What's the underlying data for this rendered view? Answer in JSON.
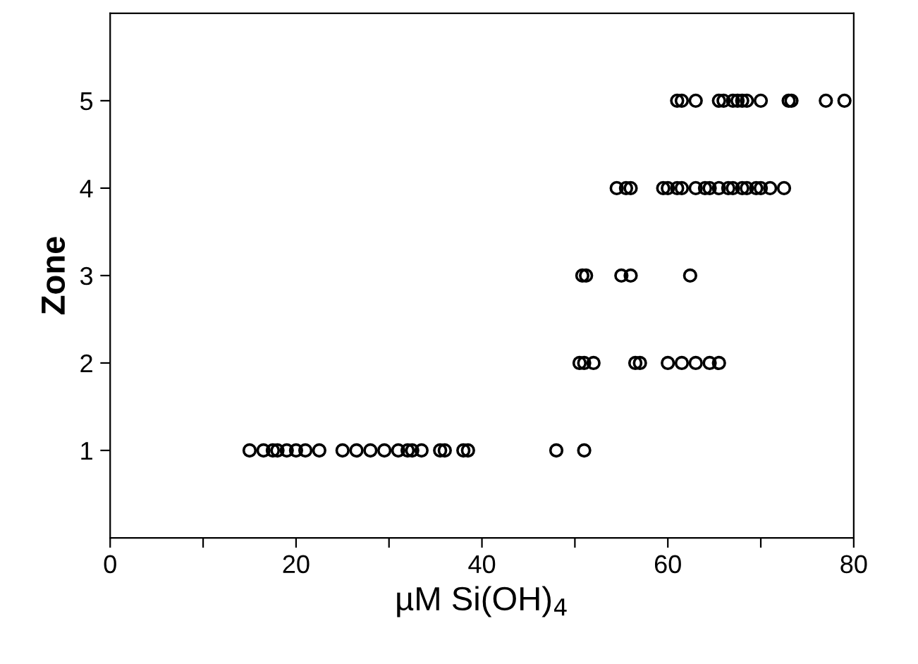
{
  "chart_data": {
    "type": "scatter",
    "xlabel": "µM Si(OH)$_{4}$",
    "ylabel": "Zone",
    "marker": "circle",
    "grid": false,
    "legend": false,
    "xlim": [
      0,
      80
    ],
    "ylim": [
      0,
      6
    ],
    "xticks": [
      0,
      {
        "value": 10,
        "label": null
      },
      20,
      {
        "value": 30,
        "label": null
      },
      40,
      {
        "value": 50,
        "label": null
      },
      60,
      {
        "value": 70,
        "label": null
      },
      80
    ],
    "yticks": [
      1,
      2,
      3,
      4,
      5
    ],
    "series": [
      {
        "color": "#000000",
        "x": [
          15,
          16.5,
          17.5,
          18,
          19,
          20,
          21,
          22.5,
          25,
          26.5,
          28,
          29.5,
          31,
          32,
          32.5,
          33.5,
          35.5,
          36,
          38,
          38.5,
          48,
          51
        ],
        "values": [
          1,
          1,
          1,
          1,
          1,
          1,
          1,
          1,
          1,
          1,
          1,
          1,
          1,
          1,
          1,
          1,
          1,
          1,
          1,
          1,
          1,
          1
        ]
      },
      {
        "color": "#000000",
        "x": [
          50.5,
          51,
          52,
          56.5,
          57,
          60,
          61.5,
          63,
          64.5,
          65.5
        ],
        "values": [
          2,
          2,
          2,
          2,
          2,
          2,
          2,
          2,
          2,
          2
        ]
      },
      {
        "color": "#000000",
        "x": [
          50.8,
          51.2,
          55,
          56,
          62.4
        ],
        "values": [
          3,
          3,
          3,
          3,
          3
        ]
      },
      {
        "color": "#000000",
        "x": [
          54.5,
          55.5,
          56,
          59.5,
          60,
          61,
          61.5,
          63,
          64,
          64.5,
          65.5,
          66.5,
          67,
          68,
          68.5,
          69.5,
          70,
          71,
          72.5
        ],
        "values": [
          4,
          4,
          4,
          4,
          4,
          4,
          4,
          4,
          4,
          4,
          4,
          4,
          4,
          4,
          4,
          4,
          4,
          4,
          4
        ]
      },
      {
        "color": "#000000",
        "x": [
          61,
          61.5,
          63,
          65.5,
          66,
          67,
          67.5,
          68,
          68.5,
          70,
          73,
          73.3,
          77,
          79
        ],
        "values": [
          5,
          5,
          5,
          5,
          5,
          5,
          5,
          5,
          5,
          5,
          5,
          5,
          5,
          5
        ]
      }
    ]
  }
}
